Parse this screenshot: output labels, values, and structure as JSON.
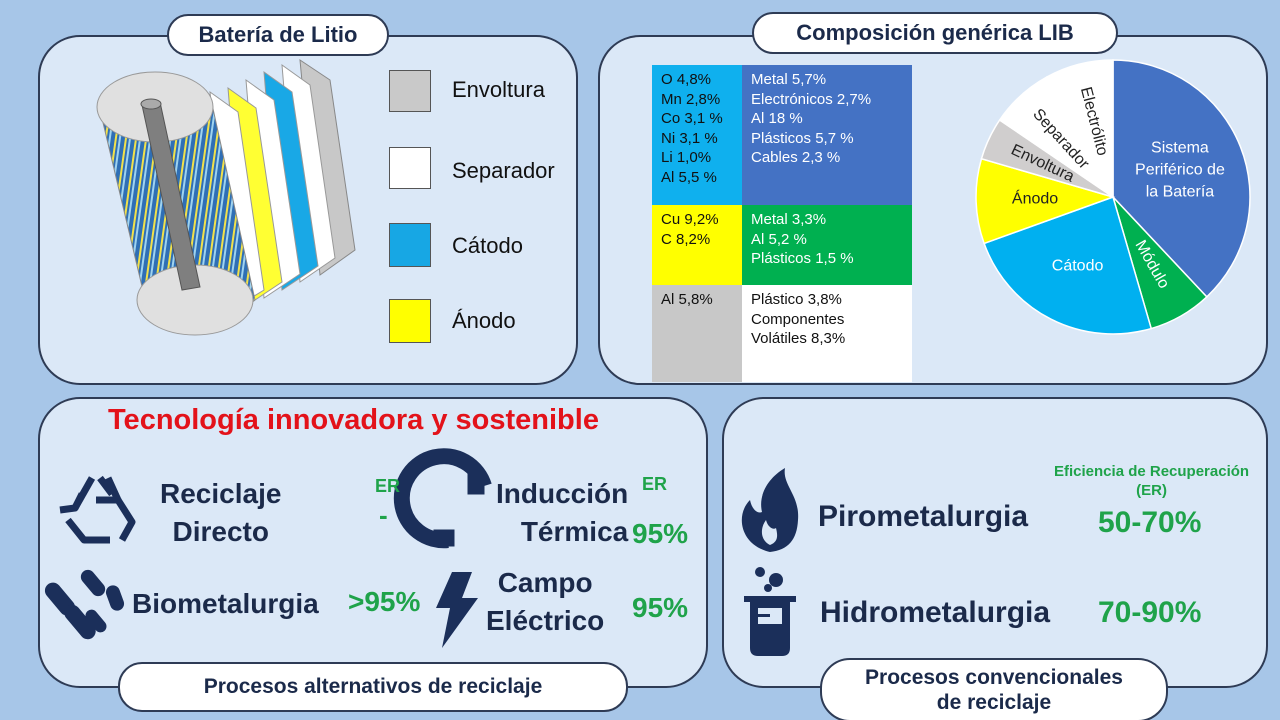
{
  "battery": {
    "title": "Batería de Litio",
    "legend": [
      "Envoltura",
      "Separador",
      "Cátodo",
      "Ánodo"
    ]
  },
  "composition": {
    "title": "Composición genérica LIB",
    "table": {
      "rows": [
        [
          [
            "O 4,8%",
            "Mn 2,8%",
            "Co 3,1 %",
            "Ni 3,1 %",
            "Li 1,0%",
            "Al 5,5 %"
          ],
          [
            "Metal 5,7%",
            "Electrónicos 2,7%",
            "Al 18 %",
            "Plásticos 5,7 %",
            "Cables 2,3 %"
          ]
        ],
        [
          [
            "Cu 9,2%",
            "C 8,2%"
          ],
          [
            "Metal 3,3%",
            "Al 5,2 %",
            "Plásticos 1,5 %"
          ]
        ],
        [
          [
            "Al 5,8%"
          ],
          [
            "Plástico 3,8%",
            "Componentes",
            "Volátiles 8,3%"
          ]
        ]
      ]
    },
    "pie": {
      "slices": [
        {
          "label": [
            "Sistema",
            "Periférico de",
            "la Batería"
          ],
          "value": 38,
          "color": "#4472c4"
        },
        {
          "label": [
            "Módulo"
          ],
          "value": 7.5,
          "color": "#00b050"
        },
        {
          "label": [
            "Cátodo"
          ],
          "value": 24,
          "color": "#00b0f0"
        },
        {
          "label": [
            "Ánodo"
          ],
          "value": 10,
          "color": "#ffff00"
        },
        {
          "label": [
            "Envoltura"
          ],
          "value": 5,
          "color": "#d0cece"
        },
        {
          "label": [
            "Separador"
          ],
          "value": 7.5,
          "color": "#ffffff"
        },
        {
          "label": [
            "Electrólito"
          ],
          "value": 8,
          "color": "#ffffff"
        }
      ]
    }
  },
  "alternative": {
    "heading": "Tecnología innovadora y sostenible",
    "items": [
      {
        "name": [
          "Reciclaje",
          "Directo"
        ],
        "er_label": "ER",
        "er": "-"
      },
      {
        "name": [
          "Inducción",
          "Térmica"
        ],
        "er_label": "ER",
        "er": "95%"
      },
      {
        "name": [
          "Biometalurgia"
        ],
        "er": ">95%"
      },
      {
        "name": [
          "Campo",
          "Eléctrico"
        ],
        "er": "95%"
      }
    ],
    "footer": "Procesos alternativos de reciclaje"
  },
  "conventional": {
    "er_heading": [
      "Eficiencia de Recuperación",
      "(ER)"
    ],
    "items": [
      {
        "name": "Pirometalurgia",
        "er": "50-70%"
      },
      {
        "name": "Hidrometalurgia",
        "er": "70-90%"
      }
    ],
    "footer": [
      "Procesos convencionales",
      "de reciclaje"
    ]
  }
}
